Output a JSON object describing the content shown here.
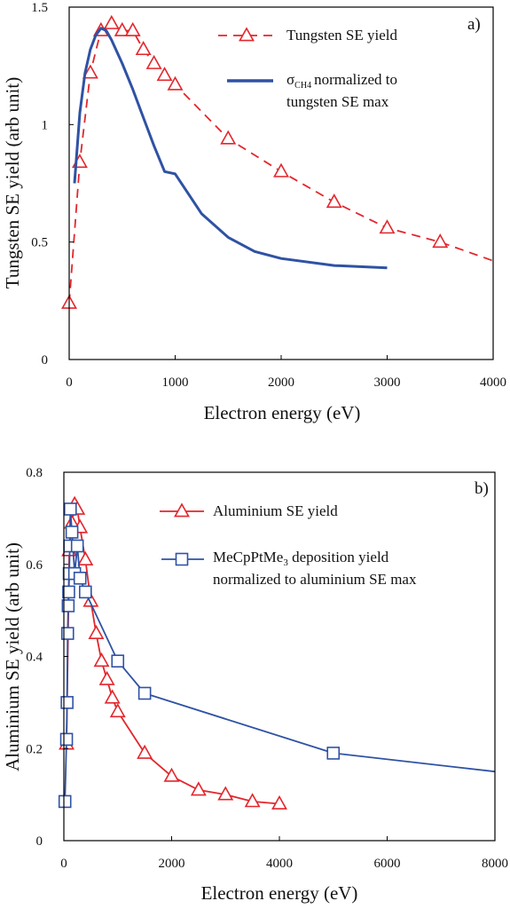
{
  "chart_data": [
    {
      "type": "line",
      "panel_label": "a)",
      "xlabel": "Electron energy (eV)",
      "ylabel": "Tungsten SE yield (arb unit)",
      "xlim": [
        0,
        4000
      ],
      "ylim": [
        0,
        1.5
      ],
      "xticks": [
        "0",
        "1000",
        "2000",
        "3000",
        "4000"
      ],
      "yticks": [
        "0",
        "0.5",
        "1",
        "1.5"
      ],
      "legend_position": "top-right",
      "series": [
        {
          "name": "Tungsten SE yield",
          "legend_text": [
            "Tungsten SE yield"
          ],
          "color": "#e3262c",
          "style": "dashed",
          "marker": "triangle",
          "x": [
            0,
            100,
            200,
            300,
            400,
            500,
            600,
            700,
            800,
            900,
            1000,
            1500,
            2000,
            2500,
            3000,
            3500,
            4000
          ],
          "y": [
            0.24,
            0.84,
            1.22,
            1.4,
            1.43,
            1.4,
            1.4,
            1.32,
            1.26,
            1.21,
            1.17,
            0.94,
            0.8,
            0.67,
            0.56,
            0.5,
            0.42
          ],
          "marker_x": [
            0,
            100,
            200,
            300,
            400,
            500,
            600,
            700,
            800,
            900,
            1000,
            1500,
            2000,
            2500,
            3000,
            3500
          ]
        },
        {
          "name": "σCH4 normalized to tungsten SE max",
          "legend_text": [
            "σ",
            "CH4",
            "normalized to",
            "tungsten SE max"
          ],
          "color": "#2f52a4",
          "style": "solid",
          "marker": "none",
          "x": [
            50,
            100,
            150,
            200,
            250,
            300,
            350,
            400,
            500,
            600,
            700,
            800,
            900,
            1000,
            1250,
            1500,
            1750,
            2000,
            2500,
            3000
          ],
          "y": [
            0.75,
            1.05,
            1.22,
            1.32,
            1.38,
            1.41,
            1.4,
            1.36,
            1.26,
            1.15,
            1.03,
            0.91,
            0.8,
            0.79,
            0.62,
            0.52,
            0.46,
            0.43,
            0.4,
            0.39
          ]
        }
      ]
    },
    {
      "type": "line",
      "panel_label": "b)",
      "xlabel": "Electron energy (eV)",
      "ylabel": "Aluminium SE yield (arb unit)",
      "xlim": [
        0,
        8000
      ],
      "ylim": [
        0,
        0.8
      ],
      "xticks": [
        "0",
        "2000",
        "4000",
        "6000",
        "8000"
      ],
      "yticks": [
        "0",
        "0.2",
        "0.4",
        "0.6",
        "0.8"
      ],
      "legend_position": "top-right",
      "series": [
        {
          "name": "Aluminium SE yield",
          "legend_text": [
            "Aluminium SE yield"
          ],
          "color": "#e3262c",
          "style": "solid",
          "marker": "triangle",
          "x": [
            50,
            100,
            150,
            200,
            250,
            300,
            400,
            500,
            600,
            700,
            800,
            900,
            1000,
            1500,
            2000,
            2500,
            3000,
            3500,
            4000
          ],
          "y": [
            0.21,
            0.63,
            0.69,
            0.73,
            0.72,
            0.68,
            0.61,
            0.52,
            0.45,
            0.39,
            0.35,
            0.31,
            0.28,
            0.19,
            0.14,
            0.11,
            0.1,
            0.085,
            0.08
          ]
        },
        {
          "name": "MeCpPtMe3 deposition yield normalized to aluminium SE max",
          "legend_text": [
            "MeCpPtMe",
            "3",
            " deposition yield",
            "normalized to aluminium SE max"
          ],
          "color": "#2f52a4",
          "style": "solid",
          "marker": "square",
          "x": [
            20,
            50,
            60,
            70,
            80,
            90,
            100,
            110,
            120,
            150,
            200,
            250,
            300,
            400,
            1000,
            1500,
            5000,
            8000
          ],
          "y": [
            0.085,
            0.22,
            0.3,
            0.45,
            0.51,
            0.54,
            0.58,
            0.64,
            0.72,
            0.67,
            0.58,
            0.64,
            0.57,
            0.54,
            0.39,
            0.32,
            0.19,
            0.15
          ],
          "marker_x": [
            20,
            50,
            60,
            70,
            80,
            90,
            100,
            110,
            120,
            150,
            200,
            250,
            300,
            400,
            1000,
            1500,
            5000
          ]
        }
      ]
    }
  ]
}
